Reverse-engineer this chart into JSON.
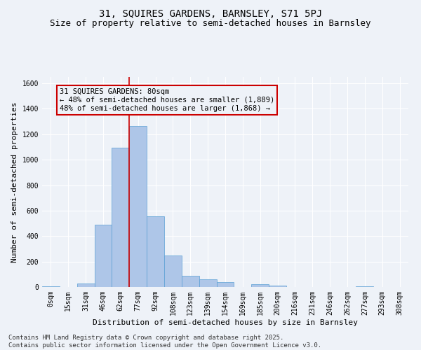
{
  "title_line1": "31, SQUIRES GARDENS, BARNSLEY, S71 5PJ",
  "title_line2": "Size of property relative to semi-detached houses in Barnsley",
  "xlabel": "Distribution of semi-detached houses by size in Barnsley",
  "ylabel": "Number of semi-detached properties",
  "bar_values": [
    8,
    0,
    30,
    490,
    1095,
    1265,
    555,
    245,
    90,
    60,
    38,
    0,
    20,
    10,
    0,
    0,
    0,
    0,
    8,
    0,
    0
  ],
  "categories": [
    "0sqm",
    "15sqm",
    "31sqm",
    "46sqm",
    "62sqm",
    "77sqm",
    "92sqm",
    "108sqm",
    "123sqm",
    "139sqm",
    "154sqm",
    "169sqm",
    "185sqm",
    "200sqm",
    "216sqm",
    "231sqm",
    "246sqm",
    "262sqm",
    "277sqm",
    "293sqm",
    "308sqm"
  ],
  "bar_color": "#aec6e8",
  "bar_edge_color": "#5a9fd4",
  "vline_idx": 4.5,
  "vline_color": "#cc0000",
  "annotation_title": "31 SQUIRES GARDENS: 80sqm",
  "annotation_line1": "← 48% of semi-detached houses are smaller (1,889)",
  "annotation_line2": "48% of semi-detached houses are larger (1,868) →",
  "annotation_box_color": "#cc0000",
  "ylim": [
    0,
    1650
  ],
  "yticks": [
    0,
    200,
    400,
    600,
    800,
    1000,
    1200,
    1400,
    1600
  ],
  "footnote_line1": "Contains HM Land Registry data © Crown copyright and database right 2025.",
  "footnote_line2": "Contains public sector information licensed under the Open Government Licence v3.0.",
  "bg_color": "#eef2f8",
  "grid_color": "#ffffff",
  "title_fontsize": 10,
  "subtitle_fontsize": 9,
  "axis_label_fontsize": 8,
  "tick_fontsize": 7,
  "annotation_fontsize": 7.5,
  "footnote_fontsize": 6.5
}
